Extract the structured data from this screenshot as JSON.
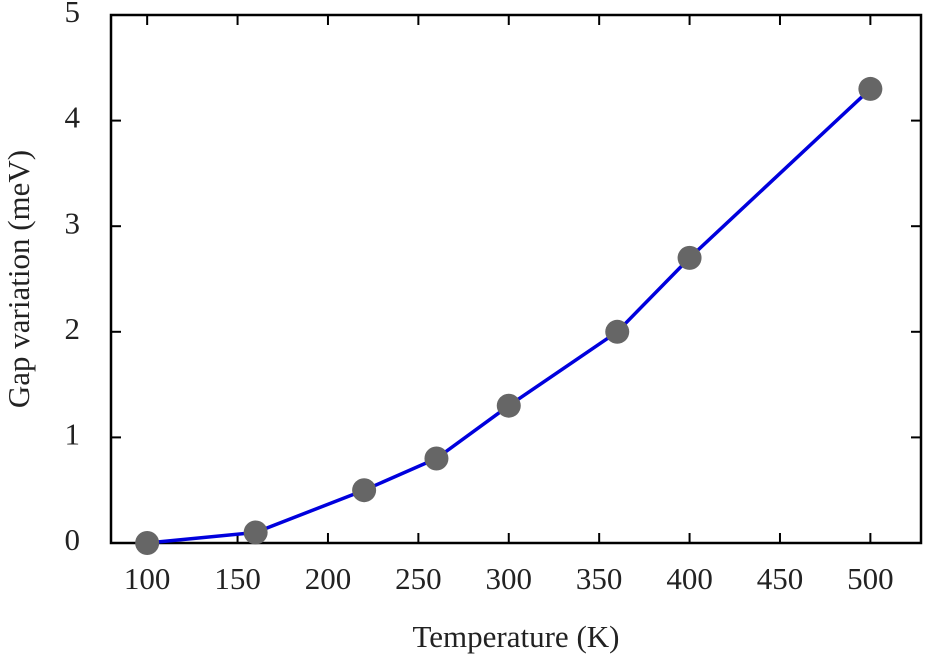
{
  "chart_data": {
    "type": "line",
    "x_label": "Temperature (K)",
    "y_label": "Gap variation (meV)",
    "x": [
      100,
      160,
      220,
      260,
      300,
      360,
      400,
      500
    ],
    "series": [
      {
        "color": "#0000dd",
        "marker_color": "#666666",
        "values": [
          0,
          0.1,
          0.5,
          0.8,
          1.3,
          2.0,
          2.7,
          4.3
        ]
      }
    ],
    "xlim": [
      80,
      528
    ],
    "ylim": [
      0,
      5
    ],
    "xticks": [
      100,
      150,
      200,
      250,
      300,
      350,
      400,
      450,
      500
    ],
    "yticks": [
      0,
      1,
      2,
      3,
      4,
      5
    ],
    "grid": false
  }
}
